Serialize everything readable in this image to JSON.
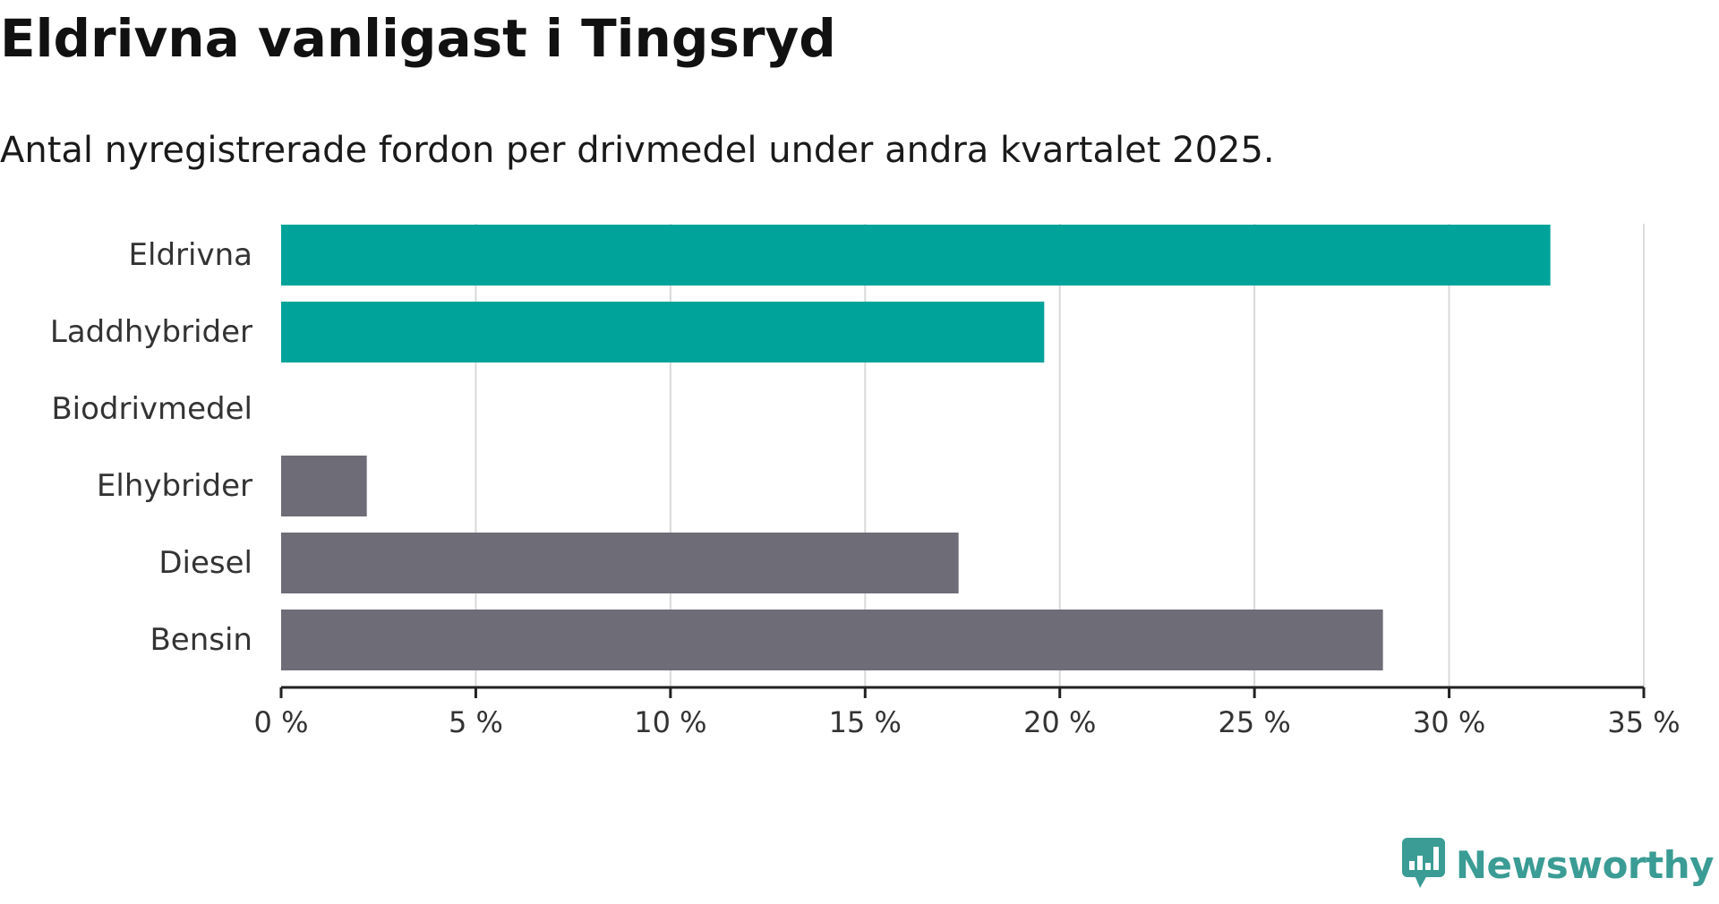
{
  "header": {
    "title": "Eldrivna vanligast i Tingsryd",
    "subtitle": "Antal nyregistrerade fordon per drivmedel under andra kvartalet 2025."
  },
  "brand": {
    "name": "Newsworthy",
    "icon": "newsworthy-logo-icon",
    "color": "#3a9c94"
  },
  "colors": {
    "highlight": "#00a39a",
    "other": "#6e6c77",
    "grid": "#d9d9d9",
    "axis": "#222222"
  },
  "chart_data": {
    "type": "bar",
    "orientation": "horizontal",
    "categories": [
      "Eldrivna",
      "Laddhybrider",
      "Biodrivmedel",
      "Elhybrider",
      "Diesel",
      "Bensin"
    ],
    "values": [
      32.6,
      19.6,
      0,
      2.2,
      17.4,
      28.3
    ],
    "bar_groups": [
      "highlight",
      "highlight",
      "other",
      "other",
      "other",
      "other"
    ],
    "xlim": [
      0,
      35
    ],
    "xticks": [
      0,
      5,
      10,
      15,
      20,
      25,
      30,
      35
    ],
    "xtick_labels": [
      "0 %",
      "5 %",
      "10 %",
      "15 %",
      "20 %",
      "25 %",
      "30 %",
      "35 %"
    ],
    "grid": "vertical",
    "xlabel": "",
    "ylabel": ""
  }
}
